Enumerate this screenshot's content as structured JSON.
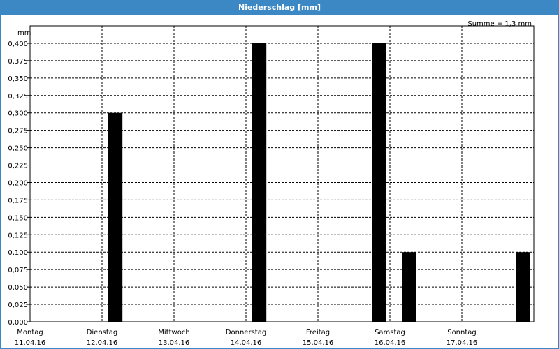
{
  "window": {
    "title": "Niederschlag [mm]"
  },
  "chart_data": {
    "type": "bar",
    "title": "Niederschlag [mm]",
    "ylabel": "mm",
    "annotation": "Summe = 1,3 mm",
    "ylim": [
      0,
      0.425
    ],
    "yticks": [
      "0,000",
      "0,025",
      "0,050",
      "0,075",
      "0,100",
      "0,125",
      "0,150",
      "0,175",
      "0,200",
      "0,225",
      "0,250",
      "0,275",
      "0,300",
      "0,325",
      "0,350",
      "0,375",
      "0,400"
    ],
    "x_ticks": [
      {
        "day": "Montag",
        "date": "11.04.16"
      },
      {
        "day": "Dienstag",
        "date": "12.04.16"
      },
      {
        "day": "Mittwoch",
        "date": "13.04.16"
      },
      {
        "day": "Donnerstag",
        "date": "14.04.16"
      },
      {
        "day": "Freitag",
        "date": "15.04.16"
      },
      {
        "day": "Samstag",
        "date": "16.04.16"
      },
      {
        "day": "Sonntag",
        "date": "17.04.16"
      }
    ],
    "bars": [
      {
        "date": "12.04.16",
        "hour": 1,
        "value": 0.3
      },
      {
        "date": "14.04.16",
        "hour": 1,
        "value": 0.4
      },
      {
        "date": "15.04.16",
        "hour": 9,
        "value": 0.4
      },
      {
        "date": "16.04.16",
        "hour": 2,
        "value": 0.1
      },
      {
        "date": "17.04.16",
        "hour": 9,
        "value": 0.1
      }
    ],
    "grid": true,
    "colors": {
      "bar": "#000000",
      "frame": "#3b88c5"
    }
  }
}
